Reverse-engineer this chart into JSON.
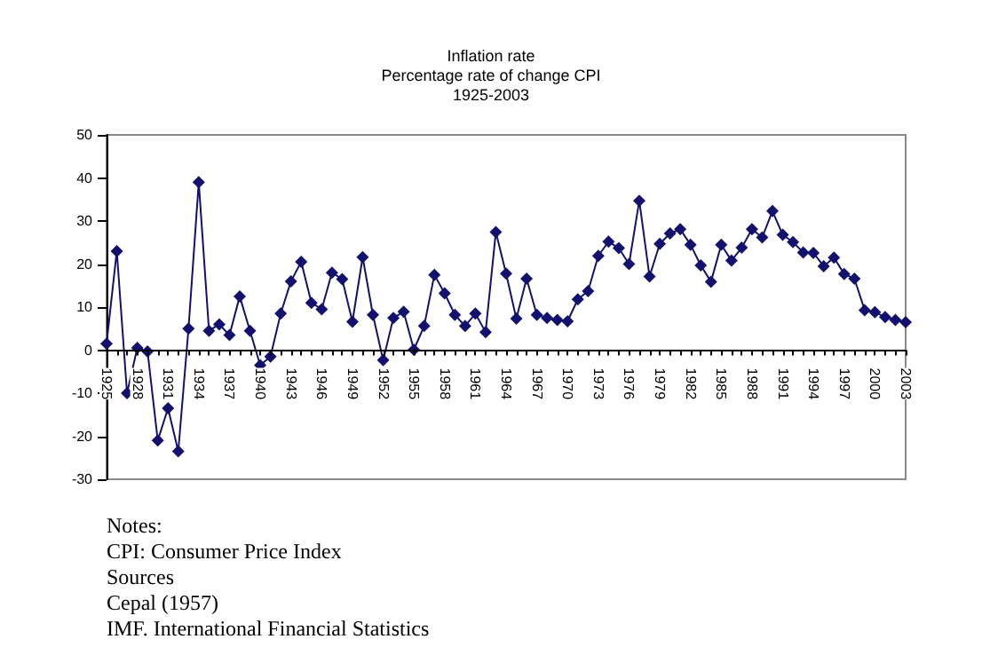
{
  "chart_data": {
    "type": "line",
    "title": "Inflation rate",
    "subtitle": "Percentage rate of change CPI\n1925-2003",
    "categories": [
      "1925",
      null,
      null,
      "1928",
      null,
      null,
      "1931",
      null,
      null,
      "1934",
      null,
      null,
      "1937",
      null,
      null,
      "1940",
      null,
      null,
      "1943",
      null,
      null,
      "1946",
      null,
      null,
      "1949",
      null,
      null,
      "1952",
      null,
      null,
      "1955",
      null,
      null,
      "1958",
      null,
      null,
      "1961",
      null,
      null,
      "1964",
      null,
      null,
      "1967",
      null,
      null,
      "1970",
      null,
      null,
      "1973",
      null,
      null,
      "1976",
      null,
      null,
      "1979",
      null,
      null,
      "1982",
      null,
      null,
      "1985",
      null,
      null,
      "1988",
      null,
      null,
      "1991",
      null,
      null,
      "1994",
      null,
      null,
      "1997",
      null,
      null,
      "2000",
      null,
      null,
      "2003"
    ],
    "series": [
      {
        "color": "#12126e",
        "values": [
          1.5,
          23,
          -10,
          0.5,
          -0.3,
          -21,
          -13.5,
          -23.5,
          5,
          39,
          4.5,
          6,
          3.5,
          12.5,
          4.5,
          -3.5,
          -1.5,
          8.5,
          16,
          20.5,
          11,
          9.5,
          18,
          16.5,
          6.6,
          21.6,
          8.2,
          -2.3,
          7.5,
          8.9,
          0.1,
          5.6,
          17.5,
          13.2,
          8.2,
          5.6,
          8.5,
          4.2,
          27.4,
          17.8,
          7.3,
          16.6,
          8.2,
          7.5,
          7,
          6.7,
          11.8,
          13.7,
          21.9,
          25.2,
          23.7,
          20,
          34.7,
          17.1,
          24.7,
          27.1,
          28.1,
          24.5,
          19.7,
          15.9,
          24.5,
          20.8,
          23.8,
          28.1,
          26.2,
          32.3,
          26.8,
          25.1,
          22.7,
          22.6,
          19.5,
          21.5,
          17.7,
          16.6,
          9.3,
          8.8,
          7.7,
          7,
          6.5
        ]
      }
    ],
    "ylim": [
      -30,
      50
    ],
    "yticks": [
      -30,
      -20,
      -10,
      0,
      10,
      20,
      30,
      40,
      50
    ],
    "grid": false,
    "marker": "diamond",
    "line_style": "solid",
    "annotations": [
      "Notes:",
      "CPI: Consumer Price Index",
      "Sources",
      "Cepal (1957)",
      "IMF. International Financial Statistics"
    ]
  }
}
